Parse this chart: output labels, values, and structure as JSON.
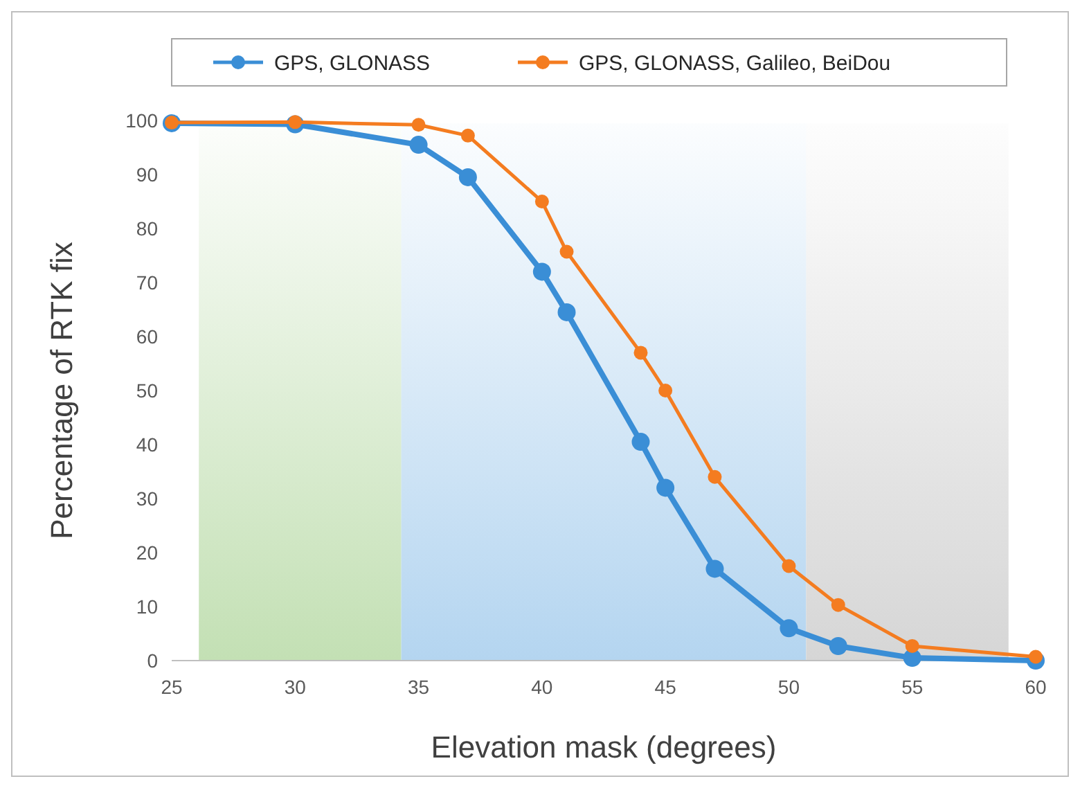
{
  "chart_data": {
    "type": "line",
    "xlabel": "Elevation mask (degrees)",
    "ylabel": "Percentage of RTK fix",
    "x": [
      25,
      30,
      35,
      37,
      40,
      41,
      44,
      45,
      47,
      50,
      52,
      55,
      60
    ],
    "series": [
      {
        "name": "GPS, GLONASS",
        "color": "#3a8ed6",
        "values": [
          99.5,
          99.3,
          95.5,
          89.5,
          72,
          64.5,
          40.5,
          32,
          17,
          6,
          2.7,
          0.5,
          0
        ]
      },
      {
        "name": "GPS, GLONASS, Galileo, BeiDou",
        "color": "#f47c20",
        "values": [
          99.6,
          99.7,
          99.2,
          97.2,
          85,
          75.7,
          57,
          50,
          34,
          17.5,
          10.3,
          2.7,
          0.7
        ]
      }
    ],
    "xlim": [
      25,
      60
    ],
    "xticks": [
      25,
      30,
      35,
      40,
      45,
      50,
      55,
      60
    ],
    "ylim": [
      0,
      100
    ],
    "yticks": [
      0,
      10,
      20,
      30,
      40,
      50,
      60,
      70,
      80,
      90,
      100
    ],
    "bands": [
      {
        "axis": "x",
        "from": 26.1,
        "to": 34.3,
        "color": "#c3e0b4"
      },
      {
        "axis": "x",
        "from": 34.3,
        "to": 50.7,
        "color": "#b4d5f0"
      },
      {
        "axis": "x",
        "from": 50.7,
        "to": 58.9,
        "color": "#d6d6d6"
      }
    ],
    "marker": "circle",
    "line_style": "solid",
    "legend": "top",
    "grid": false
  }
}
